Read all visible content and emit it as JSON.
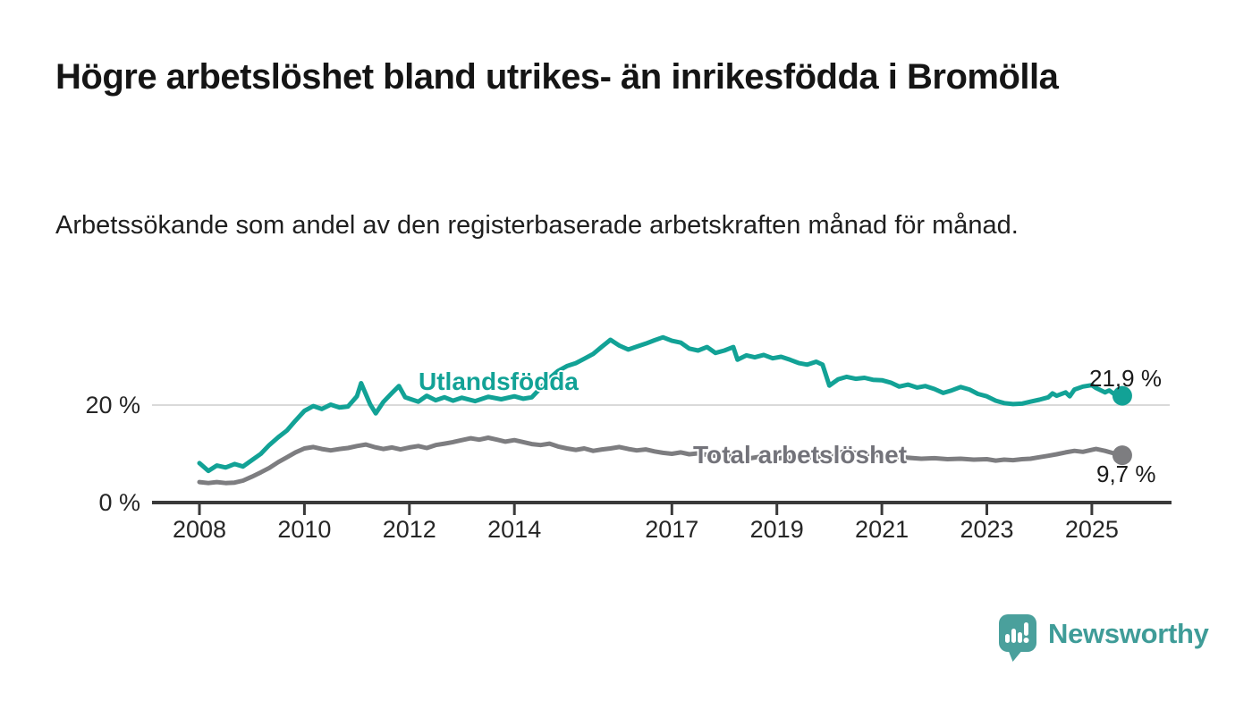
{
  "header": {
    "title": "Högre arbetslöshet bland utrikes- än inrikesfödda i Bromölla",
    "subtitle": "Arbetssökande som andel av den registerbaserade arbetskraften månad för månad."
  },
  "chart_data": {
    "type": "line",
    "title": "Högre arbetslöshet bland utrikes- än inrikesfödda i Bromölla",
    "subtitle": "Arbetssökande som andel av den registerbaserade arbetskraften månad för månad.",
    "unit": "%",
    "grid": "horizontal-20-only",
    "legend_position": "inline-labels-on-lines",
    "x_axis": {
      "label": "",
      "tick_labels": [
        "2008",
        "2010",
        "2012",
        "2014",
        "2017",
        "2019",
        "2021",
        "2023",
        "2025"
      ],
      "range": [
        2007.8,
        2026.5
      ]
    },
    "y_axis": {
      "label": "",
      "ticks": [
        {
          "value": 0,
          "label": "0 %"
        },
        {
          "value": 20,
          "label": "20 %"
        }
      ],
      "range": [
        0,
        36
      ]
    },
    "series": [
      {
        "name": "Utlandsfödda",
        "color": "#12a296",
        "end_label": "21,9 %",
        "end_value": 21.9,
        "points": [
          [
            2008.0,
            8.1
          ],
          [
            2008.17,
            6.5
          ],
          [
            2008.33,
            7.6
          ],
          [
            2008.5,
            7.2
          ],
          [
            2008.67,
            7.9
          ],
          [
            2008.83,
            7.4
          ],
          [
            2009.0,
            8.7
          ],
          [
            2009.17,
            10.0
          ],
          [
            2009.33,
            11.8
          ],
          [
            2009.5,
            13.4
          ],
          [
            2009.67,
            14.8
          ],
          [
            2009.83,
            16.8
          ],
          [
            2010.0,
            18.8
          ],
          [
            2010.17,
            19.8
          ],
          [
            2010.33,
            19.2
          ],
          [
            2010.5,
            20.1
          ],
          [
            2010.67,
            19.5
          ],
          [
            2010.83,
            19.7
          ],
          [
            2011.0,
            21.8
          ],
          [
            2011.08,
            24.5
          ],
          [
            2011.25,
            20.2
          ],
          [
            2011.36,
            18.3
          ],
          [
            2011.5,
            20.6
          ],
          [
            2011.67,
            22.5
          ],
          [
            2011.8,
            23.9
          ],
          [
            2011.92,
            21.6
          ],
          [
            2012.0,
            21.3
          ],
          [
            2012.17,
            20.7
          ],
          [
            2012.33,
            21.9
          ],
          [
            2012.5,
            21.0
          ],
          [
            2012.67,
            21.6
          ],
          [
            2012.83,
            20.9
          ],
          [
            2013.0,
            21.5
          ],
          [
            2013.25,
            20.8
          ],
          [
            2013.5,
            21.7
          ],
          [
            2013.75,
            21.2
          ],
          [
            2014.0,
            21.8
          ],
          [
            2014.17,
            21.3
          ],
          [
            2014.33,
            21.6
          ],
          [
            2014.5,
            23.5
          ],
          [
            2014.67,
            25.5
          ],
          [
            2014.83,
            27.0
          ],
          [
            2015.0,
            28.0
          ],
          [
            2015.17,
            28.6
          ],
          [
            2015.33,
            29.5
          ],
          [
            2015.5,
            30.5
          ],
          [
            2015.67,
            32.0
          ],
          [
            2015.83,
            33.4
          ],
          [
            2016.0,
            32.2
          ],
          [
            2016.17,
            31.4
          ],
          [
            2016.33,
            32.0
          ],
          [
            2016.5,
            32.6
          ],
          [
            2016.67,
            33.3
          ],
          [
            2016.83,
            33.9
          ],
          [
            2017.0,
            33.2
          ],
          [
            2017.17,
            32.8
          ],
          [
            2017.33,
            31.6
          ],
          [
            2017.5,
            31.2
          ],
          [
            2017.67,
            31.9
          ],
          [
            2017.83,
            30.7
          ],
          [
            2018.0,
            31.2
          ],
          [
            2018.17,
            31.9
          ],
          [
            2018.25,
            29.3
          ],
          [
            2018.42,
            30.2
          ],
          [
            2018.58,
            29.8
          ],
          [
            2018.75,
            30.3
          ],
          [
            2018.92,
            29.6
          ],
          [
            2019.08,
            29.9
          ],
          [
            2019.25,
            29.3
          ],
          [
            2019.42,
            28.6
          ],
          [
            2019.58,
            28.3
          ],
          [
            2019.75,
            28.9
          ],
          [
            2019.87,
            28.3
          ],
          [
            2020.0,
            24.0
          ],
          [
            2020.17,
            25.3
          ],
          [
            2020.33,
            25.8
          ],
          [
            2020.5,
            25.4
          ],
          [
            2020.67,
            25.6
          ],
          [
            2020.83,
            25.2
          ],
          [
            2021.0,
            25.1
          ],
          [
            2021.17,
            24.6
          ],
          [
            2021.33,
            23.8
          ],
          [
            2021.5,
            24.2
          ],
          [
            2021.67,
            23.6
          ],
          [
            2021.83,
            23.9
          ],
          [
            2022.0,
            23.3
          ],
          [
            2022.17,
            22.5
          ],
          [
            2022.33,
            23.0
          ],
          [
            2022.5,
            23.7
          ],
          [
            2022.67,
            23.2
          ],
          [
            2022.83,
            22.3
          ],
          [
            2023.0,
            21.8
          ],
          [
            2023.17,
            20.9
          ],
          [
            2023.33,
            20.4
          ],
          [
            2023.5,
            20.2
          ],
          [
            2023.67,
            20.3
          ],
          [
            2023.83,
            20.7
          ],
          [
            2024.0,
            21.1
          ],
          [
            2024.17,
            21.6
          ],
          [
            2024.25,
            22.4
          ],
          [
            2024.33,
            21.9
          ],
          [
            2024.5,
            22.6
          ],
          [
            2024.58,
            21.8
          ],
          [
            2024.67,
            23.2
          ],
          [
            2024.83,
            23.8
          ],
          [
            2025.0,
            24.1
          ],
          [
            2025.08,
            23.5
          ],
          [
            2025.25,
            22.6
          ],
          [
            2025.33,
            23.0
          ],
          [
            2025.42,
            22.3
          ],
          [
            2025.58,
            21.9
          ]
        ]
      },
      {
        "name": "Total arbetslöshet",
        "color": "#7d7d80",
        "end_label": "9,7 %",
        "end_value": 9.7,
        "points": [
          [
            2008.0,
            4.2
          ],
          [
            2008.17,
            4.0
          ],
          [
            2008.33,
            4.2
          ],
          [
            2008.5,
            4.0
          ],
          [
            2008.67,
            4.1
          ],
          [
            2008.83,
            4.5
          ],
          [
            2009.0,
            5.3
          ],
          [
            2009.17,
            6.2
          ],
          [
            2009.33,
            7.1
          ],
          [
            2009.5,
            8.3
          ],
          [
            2009.67,
            9.3
          ],
          [
            2009.83,
            10.3
          ],
          [
            2010.0,
            11.1
          ],
          [
            2010.17,
            11.4
          ],
          [
            2010.33,
            11.0
          ],
          [
            2010.5,
            10.7
          ],
          [
            2010.67,
            11.0
          ],
          [
            2010.83,
            11.2
          ],
          [
            2011.0,
            11.6
          ],
          [
            2011.17,
            11.9
          ],
          [
            2011.33,
            11.4
          ],
          [
            2011.5,
            11.0
          ],
          [
            2011.67,
            11.3
          ],
          [
            2011.83,
            10.9
          ],
          [
            2012.0,
            11.3
          ],
          [
            2012.17,
            11.6
          ],
          [
            2012.33,
            11.2
          ],
          [
            2012.5,
            11.8
          ],
          [
            2012.67,
            12.1
          ],
          [
            2012.83,
            12.4
          ],
          [
            2013.0,
            12.8
          ],
          [
            2013.17,
            13.2
          ],
          [
            2013.33,
            12.9
          ],
          [
            2013.5,
            13.3
          ],
          [
            2013.67,
            12.9
          ],
          [
            2013.83,
            12.5
          ],
          [
            2014.0,
            12.8
          ],
          [
            2014.17,
            12.4
          ],
          [
            2014.33,
            12.0
          ],
          [
            2014.5,
            11.8
          ],
          [
            2014.67,
            12.1
          ],
          [
            2014.83,
            11.5
          ],
          [
            2015.0,
            11.1
          ],
          [
            2015.17,
            10.8
          ],
          [
            2015.33,
            11.1
          ],
          [
            2015.5,
            10.6
          ],
          [
            2015.67,
            10.9
          ],
          [
            2015.83,
            11.1
          ],
          [
            2016.0,
            11.4
          ],
          [
            2016.17,
            11.0
          ],
          [
            2016.33,
            10.7
          ],
          [
            2016.5,
            10.9
          ],
          [
            2016.67,
            10.5
          ],
          [
            2016.83,
            10.2
          ],
          [
            2017.0,
            10.0
          ],
          [
            2017.17,
            10.3
          ],
          [
            2017.33,
            9.9
          ],
          [
            2017.5,
            10.1
          ],
          [
            2017.67,
            9.8
          ],
          [
            2017.83,
            9.6
          ],
          [
            2018.0,
            9.4
          ],
          [
            2018.17,
            9.6
          ],
          [
            2018.33,
            9.3
          ],
          [
            2018.5,
            9.1
          ],
          [
            2018.67,
            9.4
          ],
          [
            2018.83,
            9.2
          ],
          [
            2019.0,
            9.0
          ],
          [
            2019.17,
            9.3
          ],
          [
            2019.33,
            9.1
          ],
          [
            2019.5,
            9.4
          ],
          [
            2019.67,
            9.2
          ],
          [
            2019.83,
            9.5
          ],
          [
            2020.0,
            9.8
          ],
          [
            2020.25,
            10.4
          ],
          [
            2020.5,
            10.2
          ],
          [
            2020.75,
            10.0
          ],
          [
            2021.0,
            9.6
          ],
          [
            2021.25,
            9.4
          ],
          [
            2021.5,
            9.2
          ],
          [
            2021.75,
            9.0
          ],
          [
            2022.0,
            9.1
          ],
          [
            2022.25,
            8.9
          ],
          [
            2022.5,
            9.0
          ],
          [
            2022.75,
            8.8
          ],
          [
            2023.0,
            8.9
          ],
          [
            2023.17,
            8.6
          ],
          [
            2023.33,
            8.8
          ],
          [
            2023.5,
            8.7
          ],
          [
            2023.67,
            8.9
          ],
          [
            2023.83,
            9.0
          ],
          [
            2024.0,
            9.3
          ],
          [
            2024.17,
            9.6
          ],
          [
            2024.33,
            9.9
          ],
          [
            2024.5,
            10.3
          ],
          [
            2024.67,
            10.6
          ],
          [
            2024.83,
            10.4
          ],
          [
            2025.0,
            10.8
          ],
          [
            2025.08,
            11.0
          ],
          [
            2025.25,
            10.6
          ],
          [
            2025.42,
            10.1
          ],
          [
            2025.58,
            9.7
          ]
        ]
      }
    ],
    "colors": {
      "axis": "#3a3a3a",
      "gridline": "#d9d9d9",
      "teal": "#12a296",
      "gray": "#7d7d80"
    }
  },
  "branding": {
    "logo_icon": "newsworthy-speech-bubble-bar-chart-icon",
    "logo_text": "Newsworthy",
    "logo_color": "#4aa09c",
    "text_color": "#3f9c98"
  }
}
